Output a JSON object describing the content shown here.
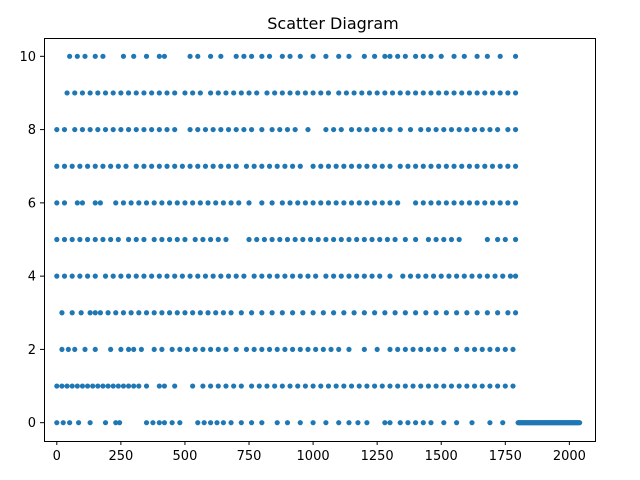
{
  "chart_data": {
    "type": "scatter",
    "title": "Scatter Diagram",
    "xlabel": "",
    "ylabel": "",
    "xlim": [
      -50,
      2100
    ],
    "ylim": [
      -0.5,
      10.5
    ],
    "xticks": [
      0,
      250,
      500,
      750,
      1000,
      1250,
      1500,
      1750,
      2000
    ],
    "yticks": [
      0,
      2,
      4,
      6,
      8,
      10
    ],
    "grid": false,
    "marker_color": "#1f77b4",
    "series": [
      {
        "points_by_level": {
          "0": [
            0,
            25,
            50,
            85,
            130,
            190,
            230,
            245,
            350,
            375,
            400,
            420,
            450,
            480,
            550,
            575,
            600,
            625,
            650,
            680,
            720,
            760,
            800,
            860,
            900,
            950,
            1000,
            1050,
            1100,
            1140,
            1175,
            1210,
            1280,
            1300,
            1340,
            1370,
            1400,
            1430,
            1460,
            1510,
            1560,
            1620,
            1690,
            1740
          ],
          "1": [
            0,
            20,
            40,
            60,
            80,
            100,
            120,
            140,
            160,
            180,
            200,
            220,
            240,
            260,
            280,
            300,
            320,
            350,
            400,
            420,
            460,
            530,
            570,
            600,
            630,
            660,
            690,
            720,
            760,
            790,
            820,
            850,
            880,
            910,
            940,
            970,
            1000,
            1030,
            1060,
            1090,
            1120,
            1150,
            1180,
            1210,
            1240,
            1270,
            1300,
            1330,
            1360,
            1390,
            1420,
            1450,
            1480,
            1510,
            1540,
            1570,
            1600,
            1630,
            1660,
            1690,
            1720,
            1750,
            1780
          ],
          "2": [
            20,
            45,
            70,
            110,
            150,
            210,
            250,
            280,
            300,
            330,
            380,
            410,
            450,
            480,
            510,
            540,
            570,
            600,
            630,
            660,
            700,
            740,
            770,
            800,
            830,
            860,
            890,
            920,
            950,
            980,
            1010,
            1040,
            1070,
            1100,
            1140,
            1200,
            1250,
            1300,
            1330,
            1360,
            1390,
            1420,
            1450,
            1480,
            1510,
            1560,
            1600,
            1630,
            1660,
            1690,
            1720,
            1750,
            1780
          ],
          "3": [
            20,
            60,
            95,
            130,
            150,
            170,
            200,
            230,
            260,
            290,
            320,
            350,
            380,
            410,
            440,
            470,
            500,
            530,
            560,
            590,
            620,
            650,
            680,
            720,
            760,
            800,
            840,
            880,
            920,
            960,
            1000,
            1040,
            1080,
            1120,
            1160,
            1200,
            1240,
            1280,
            1320,
            1360,
            1400,
            1440,
            1480,
            1520,
            1560,
            1600,
            1640,
            1680,
            1720,
            1760,
            1790
          ],
          "4": [
            0,
            30,
            60,
            90,
            120,
            150,
            190,
            220,
            250,
            280,
            310,
            340,
            370,
            400,
            430,
            460,
            490,
            520,
            550,
            580,
            610,
            640,
            670,
            700,
            730,
            770,
            800,
            830,
            860,
            890,
            920,
            950,
            980,
            1010,
            1050,
            1080,
            1110,
            1140,
            1170,
            1200,
            1230,
            1260,
            1300,
            1350,
            1380,
            1410,
            1440,
            1470,
            1500,
            1530,
            1560,
            1590,
            1620,
            1650,
            1680,
            1710,
            1740,
            1770,
            1790
          ],
          "5": [
            0,
            30,
            60,
            90,
            120,
            150,
            180,
            210,
            240,
            280,
            310,
            340,
            380,
            410,
            440,
            470,
            500,
            540,
            570,
            600,
            630,
            660,
            750,
            780,
            810,
            840,
            870,
            900,
            930,
            960,
            990,
            1020,
            1050,
            1080,
            1110,
            1140,
            1170,
            1200,
            1230,
            1260,
            1290,
            1320,
            1360,
            1400,
            1450,
            1480,
            1510,
            1540,
            1570,
            1680,
            1720,
            1750,
            1790
          ],
          "6": [
            0,
            30,
            80,
            100,
            150,
            170,
            230,
            260,
            290,
            320,
            350,
            380,
            410,
            440,
            470,
            500,
            530,
            560,
            590,
            620,
            650,
            680,
            710,
            750,
            800,
            840,
            880,
            910,
            940,
            970,
            1000,
            1030,
            1060,
            1090,
            1120,
            1150,
            1180,
            1210,
            1240,
            1270,
            1300,
            1330,
            1400,
            1430,
            1460,
            1490,
            1520,
            1550,
            1580,
            1610,
            1640,
            1670,
            1700,
            1730,
            1760,
            1790
          ],
          "7": [
            0,
            30,
            60,
            90,
            120,
            150,
            180,
            210,
            240,
            270,
            310,
            340,
            370,
            400,
            430,
            460,
            490,
            520,
            550,
            580,
            610,
            640,
            670,
            700,
            740,
            770,
            800,
            830,
            860,
            890,
            920,
            950,
            1000,
            1030,
            1060,
            1090,
            1120,
            1150,
            1180,
            1210,
            1240,
            1270,
            1300,
            1340,
            1370,
            1400,
            1430,
            1460,
            1490,
            1520,
            1550,
            1580,
            1610,
            1640,
            1670,
            1700,
            1730,
            1760,
            1790
          ],
          "8": [
            0,
            30,
            70,
            100,
            130,
            160,
            190,
            220,
            250,
            280,
            310,
            340,
            370,
            400,
            430,
            460,
            520,
            550,
            580,
            610,
            640,
            670,
            700,
            730,
            760,
            800,
            840,
            870,
            900,
            930,
            980,
            1050,
            1080,
            1110,
            1150,
            1180,
            1210,
            1240,
            1270,
            1300,
            1340,
            1380,
            1420,
            1450,
            1480,
            1510,
            1540,
            1570,
            1600,
            1630,
            1660,
            1690,
            1720,
            1760,
            1790
          ],
          "9": [
            40,
            70,
            100,
            130,
            160,
            190,
            220,
            250,
            280,
            310,
            340,
            370,
            400,
            430,
            460,
            500,
            530,
            560,
            600,
            630,
            660,
            690,
            720,
            750,
            780,
            820,
            850,
            880,
            910,
            940,
            970,
            1000,
            1030,
            1060,
            1100,
            1130,
            1160,
            1190,
            1220,
            1250,
            1280,
            1310,
            1340,
            1370,
            1400,
            1430,
            1460,
            1490,
            1520,
            1550,
            1580,
            1610,
            1640,
            1670,
            1700,
            1730,
            1760,
            1790
          ],
          "10": [
            50,
            80,
            110,
            150,
            180,
            260,
            300,
            350,
            400,
            420,
            520,
            550,
            600,
            640,
            700,
            730,
            760,
            800,
            830,
            880,
            910,
            950,
            1000,
            1050,
            1100,
            1140,
            1200,
            1240,
            1280,
            1300,
            1330,
            1360,
            1400,
            1430,
            1460,
            1500,
            1550,
            1590,
            1640,
            1680,
            1730,
            1790
          ]
        },
        "tail": {
          "y": 0,
          "x_start": 1800,
          "x_end": 2040,
          "step": 3
        }
      }
    ]
  }
}
